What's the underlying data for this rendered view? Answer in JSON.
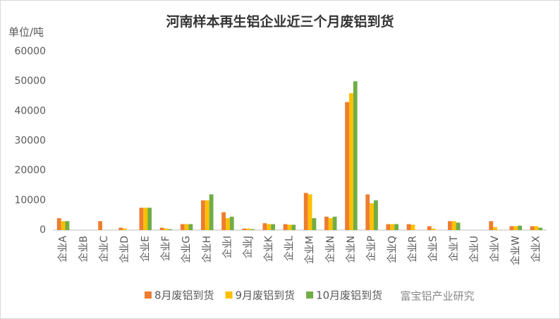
{
  "chart_data": {
    "type": "bar",
    "title": "河南样本再生铝企业近三个月废铝到货",
    "y_label": "单位/吨",
    "watermark": "富宝铝产业研究",
    "categories": [
      "企业A",
      "企业B",
      "企业C",
      "企业D",
      "企业E",
      "企业F",
      "企业G",
      "企业H",
      "企业I",
      "企业J",
      "企业K",
      "企业L",
      "企业M",
      "企业N",
      "企业N",
      "企业P",
      "企业Q",
      "企业R",
      "企业S",
      "企业T",
      "企业U",
      "企业V",
      "企业W",
      "企业X"
    ],
    "series": [
      {
        "name": "8月废铝到货",
        "color": "#ED7D31",
        "values": [
          4000,
          0,
          3000,
          800,
          7500,
          800,
          2000,
          10000,
          6000,
          500,
          2300,
          2000,
          12500,
          4500,
          43000,
          12000,
          2000,
          2000,
          1300,
          3000,
          0,
          3000,
          1300,
          1300
        ]
      },
      {
        "name": "9月废铝到货",
        "color": "#FFC000",
        "values": [
          3000,
          0,
          0,
          500,
          7500,
          500,
          2000,
          10000,
          4000,
          500,
          2000,
          1800,
          12000,
          4000,
          46000,
          9000,
          2000,
          1800,
          500,
          3000,
          0,
          1000,
          1300,
          1300
        ]
      },
      {
        "name": "10月废铝到货",
        "color": "#70AD47",
        "values": [
          3000,
          0,
          0,
          0,
          7500,
          300,
          2000,
          12000,
          4500,
          300,
          2000,
          1800,
          4000,
          4500,
          50000,
          10000,
          2000,
          0,
          0,
          2500,
          0,
          0,
          1500,
          800
        ]
      }
    ],
    "ylim": [
      0,
      60000
    ],
    "yticks": [
      0,
      10000,
      20000,
      30000,
      40000,
      50000,
      60000
    ],
    "legend": "bottom-right"
  }
}
